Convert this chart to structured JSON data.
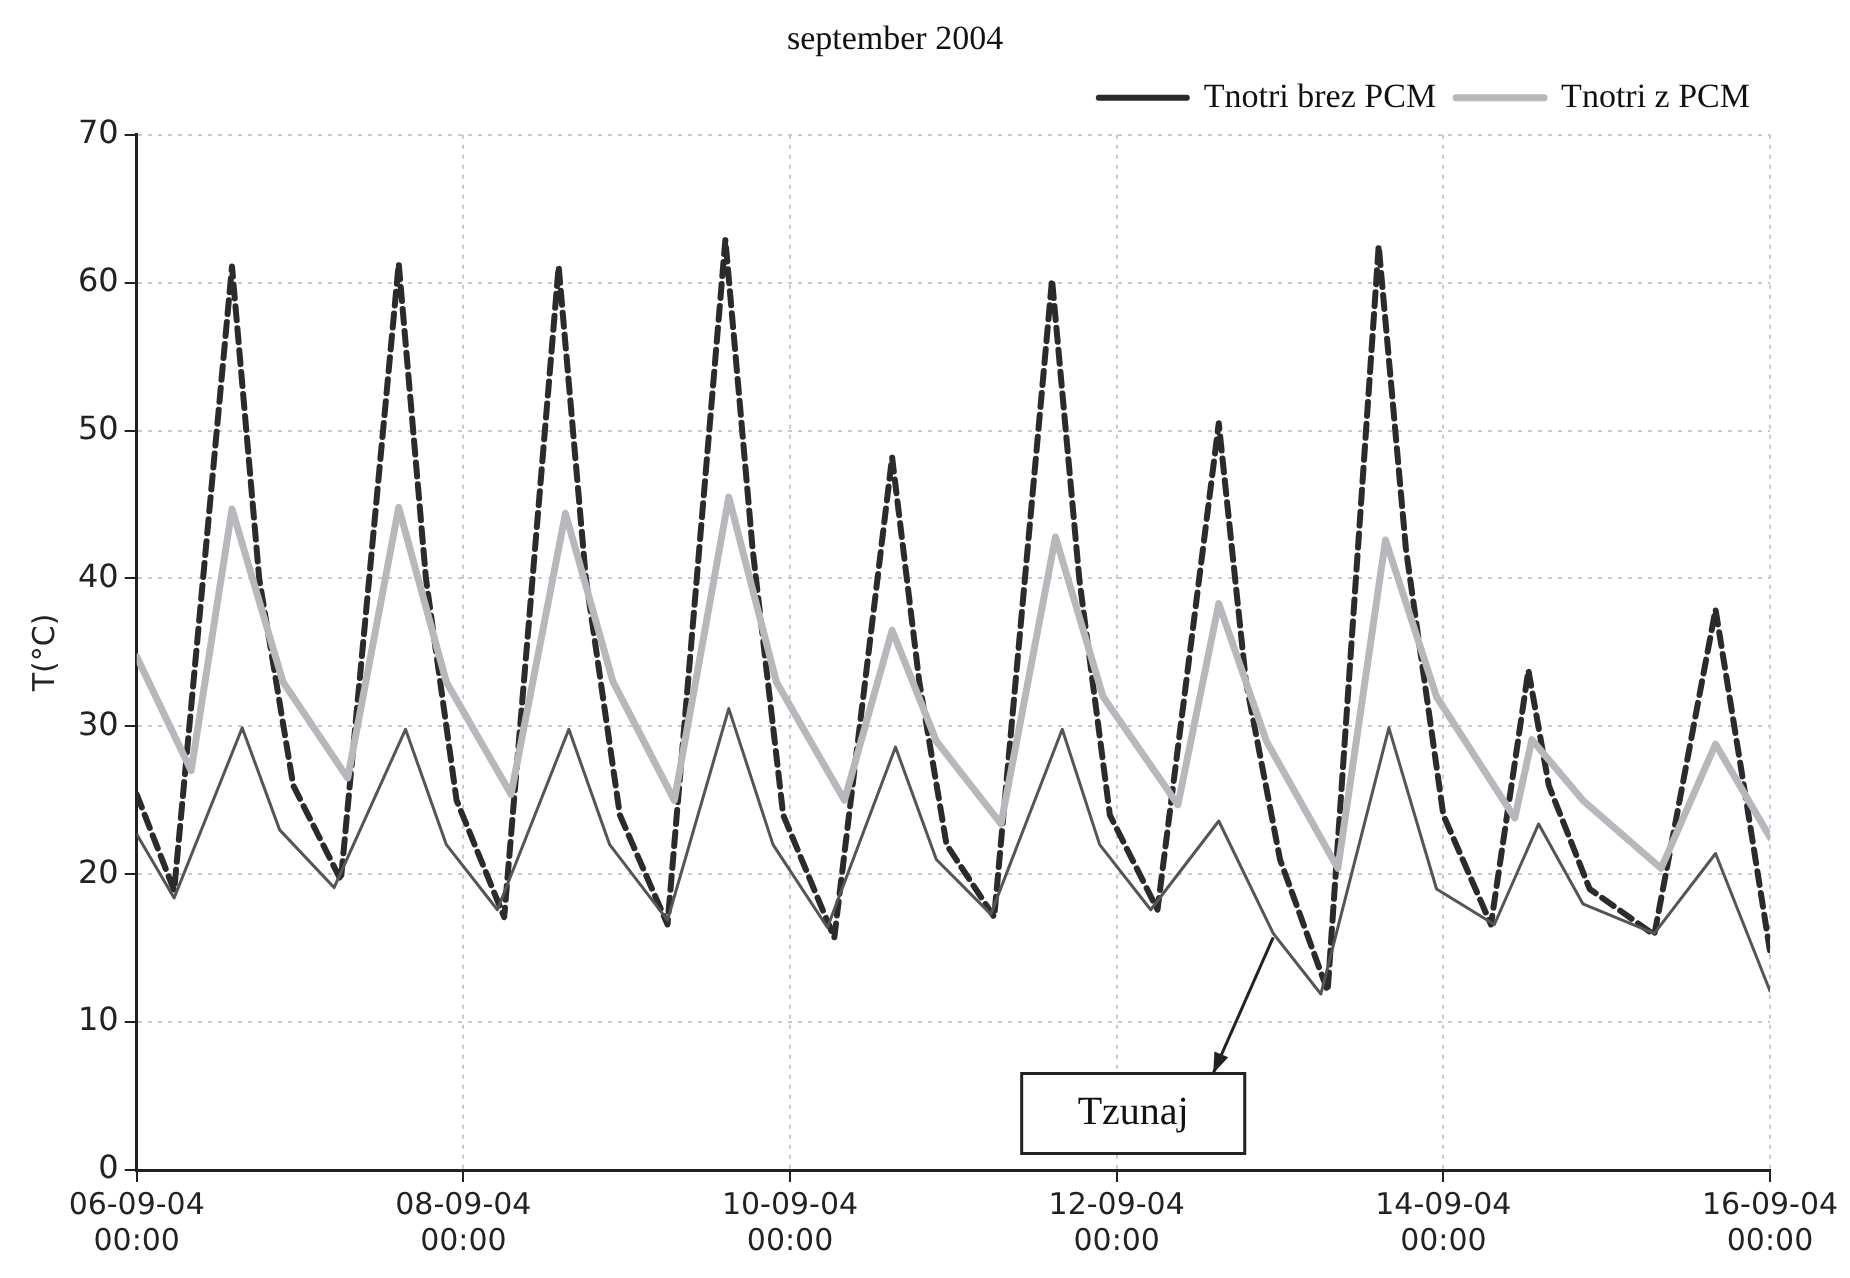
{
  "chart_data": {
    "type": "line",
    "title": "september 2004",
    "ylabel": "T(°C)",
    "ylim": [
      0,
      70
    ],
    "yticks": [
      0,
      10,
      20,
      30,
      40,
      50,
      60,
      70
    ],
    "xlim": [
      "2004-09-06",
      "2004-09-16"
    ],
    "xticks": [
      {
        "value": "2004-09-06",
        "label": "06-09-04 00:00"
      },
      {
        "value": "2004-09-08",
        "label": "08-09-04 00:00"
      },
      {
        "value": "2004-09-10",
        "label": "10-09-04 00:00"
      },
      {
        "value": "2004-09-12",
        "label": "12-09-04 00:00"
      },
      {
        "value": "2004-09-14",
        "label": "14-09-04 00:00"
      },
      {
        "value": "2004-09-16",
        "label": "16-09-04 00:00"
      }
    ],
    "grid": true,
    "legend": "top right",
    "marker": "none",
    "annotations": [
      {
        "text": "Tzunaj",
        "x": "2004-09-12T23:00",
        "y": 16
      }
    ],
    "series": [
      {
        "name": "Tnotri brez PCM",
        "color": "#2b2b2b",
        "line_style": "dashed",
        "x": [
          "2004-09-06T00:00",
          "2004-09-06T05:30",
          "2004-09-06T14:00",
          "2004-09-06T18:00",
          "2004-09-06T23:00",
          "2004-09-07T06:00",
          "2004-09-07T14:30",
          "2004-09-07T18:30",
          "2004-09-07T23:00",
          "2004-09-08T06:00",
          "2004-09-08T14:00",
          "2004-09-08T18:00",
          "2004-09-08T23:00",
          "2004-09-09T06:00",
          "2004-09-09T14:30",
          "2004-09-09T18:30",
          "2004-09-09T23:00",
          "2004-09-10T06:30",
          "2004-09-10T15:00",
          "2004-09-10T19:00",
          "2004-09-10T23:00",
          "2004-09-11T06:00",
          "2004-09-11T14:30",
          "2004-09-11T18:30",
          "2004-09-11T23:00",
          "2004-09-12T06:00",
          "2004-09-12T15:00",
          "2004-09-12T19:00",
          "2004-09-13T00:00",
          "2004-09-13T07:00",
          "2004-09-13T14:30",
          "2004-09-13T18:30",
          "2004-09-14T00:00",
          "2004-09-14T07:00",
          "2004-09-14T12:30",
          "2004-09-14T15:30",
          "2004-09-14T21:30",
          "2004-09-15T07:00",
          "2004-09-15T16:00",
          "2004-09-15T20:30",
          "2004-09-16T00:00"
        ],
        "values": [
          25.4,
          18.9,
          61.1,
          40,
          26,
          19.6,
          61.3,
          40,
          25,
          17.1,
          61.1,
          40,
          24,
          16.6,
          62.9,
          42,
          24,
          15.7,
          48.2,
          33,
          22,
          17.1,
          60.2,
          40,
          24,
          17.6,
          50.5,
          33,
          21,
          12.1,
          62.5,
          42,
          24,
          16.6,
          33.8,
          26,
          19,
          15.9,
          37.9,
          25,
          14.8
        ]
      },
      {
        "name": "Tnotri z PCM",
        "color": "#b8b8bc",
        "line_style": "solid",
        "x": [
          "2004-09-06T00:00",
          "2004-09-06T08:00",
          "2004-09-06T14:00",
          "2004-09-06T21:30",
          "2004-09-07T07:00",
          "2004-09-07T14:30",
          "2004-09-07T21:30",
          "2004-09-08T07:00",
          "2004-09-08T15:00",
          "2004-09-08T22:00",
          "2004-09-09T07:00",
          "2004-09-09T15:00",
          "2004-09-09T22:00",
          "2004-09-10T08:00",
          "2004-09-10T15:00",
          "2004-09-10T21:30",
          "2004-09-11T07:00",
          "2004-09-11T15:00",
          "2004-09-11T22:00",
          "2004-09-12T09:00",
          "2004-09-12T15:00",
          "2004-09-12T22:00",
          "2004-09-13T08:30",
          "2004-09-13T15:30",
          "2004-09-13T23:00",
          "2004-09-14T10:30",
          "2004-09-14T13:00",
          "2004-09-14T20:30",
          "2004-09-15T08:00",
          "2004-09-15T16:00",
          "2004-09-16T00:00"
        ],
        "values": [
          34.7,
          27,
          44.7,
          33,
          26.5,
          44.8,
          33,
          25.4,
          44.4,
          33,
          25,
          45.5,
          33,
          25,
          36.5,
          29,
          23.4,
          42.8,
          32,
          24.7,
          38.3,
          29,
          20.4,
          42.6,
          32,
          23.8,
          29.1,
          25,
          20.4,
          28.8,
          22.5
        ]
      },
      {
        "color": "#555555",
        "line_style": "solid",
        "x": [
          "2004-09-06T00:00",
          "2004-09-06T05:30",
          "2004-09-06T15:30",
          "2004-09-06T21:00",
          "2004-09-07T05:00",
          "2004-09-07T15:30",
          "2004-09-07T21:30",
          "2004-09-08T05:00",
          "2004-09-08T15:30",
          "2004-09-08T21:30",
          "2004-09-09T06:00",
          "2004-09-09T15:00",
          "2004-09-09T21:30",
          "2004-09-10T05:30",
          "2004-09-10T15:30",
          "2004-09-10T21:30",
          "2004-09-11T05:30",
          "2004-09-11T16:00",
          "2004-09-11T21:30",
          "2004-09-12T05:00",
          "2004-09-12T15:00",
          "2004-09-12T23:00",
          "2004-09-13T06:00",
          "2004-09-13T16:00",
          "2004-09-13T23:00",
          "2004-09-14T07:30",
          "2004-09-14T14:00",
          "2004-09-14T20:30",
          "2004-09-15T07:00",
          "2004-09-15T16:00",
          "2004-09-16T00:00"
        ],
        "values": [
          22.7,
          18.4,
          29.9,
          23,
          19.1,
          29.8,
          22,
          17.6,
          29.8,
          22,
          16.9,
          31.2,
          22,
          16.4,
          28.6,
          21,
          17.3,
          29.8,
          22,
          17.6,
          23.6,
          16,
          11.9,
          29.9,
          19,
          16.6,
          23.4,
          18,
          16,
          21.4,
          12.1
        ]
      }
    ]
  }
}
